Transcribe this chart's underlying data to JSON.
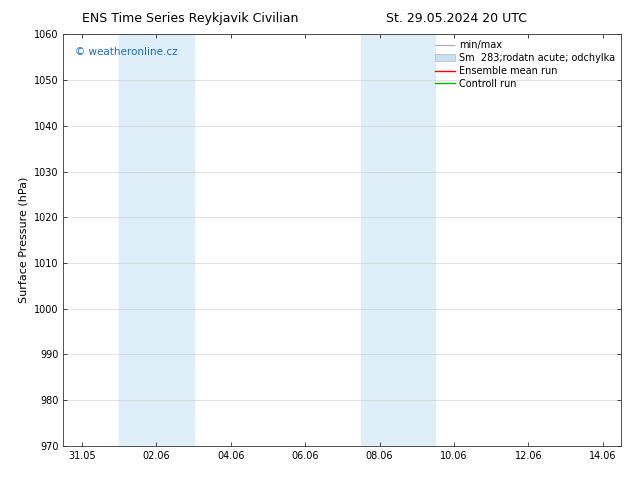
{
  "title_left": "ENS Time Series Reykjavik Civilian",
  "title_right": "St. 29.05.2024 20 UTC",
  "ylabel": "Surface Pressure (hPa)",
  "ylim": [
    970,
    1060
  ],
  "yticks": [
    970,
    980,
    990,
    1000,
    1010,
    1020,
    1030,
    1040,
    1050,
    1060
  ],
  "x_tick_labels": [
    "31.05",
    "02.06",
    "04.06",
    "06.06",
    "08.06",
    "10.06",
    "12.06",
    "14.06"
  ],
  "x_tick_positions": [
    0,
    2,
    4,
    6,
    8,
    10,
    12,
    14
  ],
  "xlim": [
    -0.5,
    14.5
  ],
  "shaded_bands": [
    {
      "xmin": 1.0,
      "xmax": 3.0,
      "color": "#ddeef9"
    },
    {
      "xmin": 7.5,
      "xmax": 9.5,
      "color": "#ddeef9"
    }
  ],
  "watermark": "© weatheronline.cz",
  "watermark_color": "#1a6bc4",
  "legend_labels": [
    "min/max",
    "Sm  283;rodatn acute; odchylka",
    "Ensemble mean run",
    "Controll run"
  ],
  "legend_colors": [
    "#999999",
    "#c8dff0",
    "#ff0000",
    "#00bb00"
  ],
  "background_color": "#ffffff",
  "plot_bg_color": "#ffffff",
  "grid_color": "#cccccc",
  "title_fontsize": 9,
  "axis_label_fontsize": 8,
  "tick_fontsize": 7,
  "legend_fontsize": 7
}
